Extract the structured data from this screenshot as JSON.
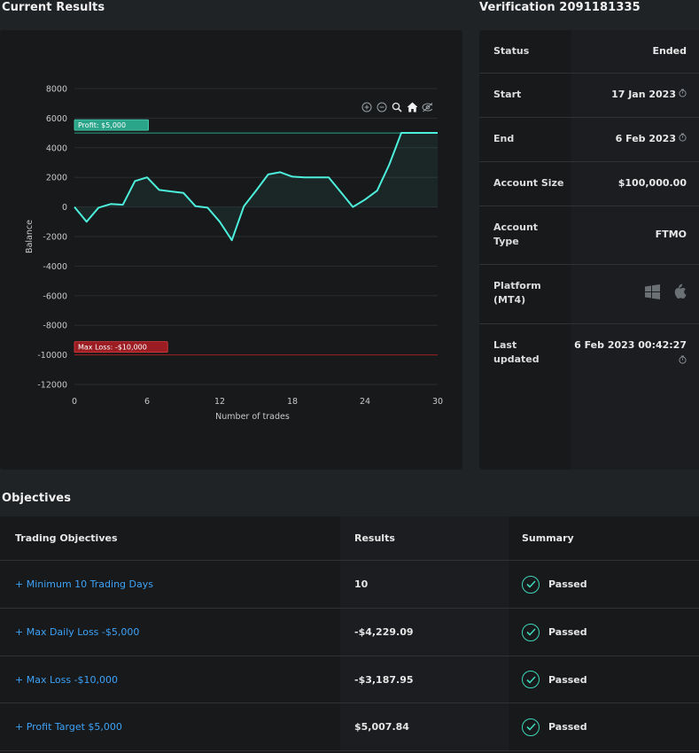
{
  "current_results": {
    "title": "Current Results"
  },
  "chart_data": {
    "type": "line",
    "xlabel": "Number of trades",
    "ylabel": "Balance",
    "xlim": [
      0,
      30
    ],
    "ylim": [
      -12000,
      8000
    ],
    "x_ticks": [
      "0",
      "6",
      "12",
      "18",
      "24",
      "30"
    ],
    "y_ticks": [
      "8000",
      "6000",
      "4000",
      "2000",
      "0",
      "-2000",
      "-4000",
      "-6000",
      "-8000",
      "-10000",
      "-12000"
    ],
    "x": [
      0,
      1,
      2,
      3,
      4,
      5,
      6,
      7,
      8,
      9,
      10,
      11,
      12,
      13,
      14,
      15,
      16,
      17,
      18,
      19,
      20,
      21,
      22,
      23,
      24,
      25,
      26,
      27,
      28,
      29,
      30
    ],
    "values": [
      0,
      -1000,
      -50,
      200,
      150,
      1750,
      2000,
      1150,
      1050,
      950,
      50,
      -50,
      -1000,
      -2250,
      50,
      1100,
      2200,
      2350,
      2050,
      2000,
      2000,
      2000,
      1000,
      0,
      500,
      1100,
      2850,
      5008,
      5008,
      5008,
      5008
    ],
    "lines": [
      {
        "label": "Profit: $5,000",
        "value": 5000,
        "color": "#2aa58a"
      },
      {
        "label": "Max Loss: -$10,000",
        "value": -10000,
        "color": "#9b1c22"
      }
    ],
    "line_color": "#4df0dc"
  },
  "verification": {
    "title": "Verification 2091181335",
    "rows": [
      {
        "label": "Status",
        "value": "Ended"
      },
      {
        "label": "Start",
        "value": "17 Jan 2023"
      },
      {
        "label": "End",
        "value": "6 Feb 2023"
      },
      {
        "label": "Account Size",
        "value": "$100,000.00"
      },
      {
        "label": "Account Type",
        "value": "FTMO"
      },
      {
        "label": "Platform (MT4)",
        "value": ""
      },
      {
        "label": "Last updated",
        "value": "6 Feb 2023 00:42:27"
      }
    ],
    "platform_icons": [
      "windows-icon",
      "apple-icon"
    ]
  },
  "objectives": {
    "title": "Objectives",
    "headers": [
      "Trading Objectives",
      "Results",
      "Summary"
    ],
    "rows": [
      {
        "objective": "+ Minimum 10 Trading Days",
        "result": "10",
        "summary": "Passed"
      },
      {
        "objective": "+ Max Daily Loss -$5,000",
        "result": "-$4,229.09",
        "summary": "Passed"
      },
      {
        "objective": "+ Max Loss -$10,000",
        "result": "-$3,187.95",
        "summary": "Passed"
      },
      {
        "objective": "+ Profit Target $5,000",
        "result": "$5,007.84",
        "summary": "Passed"
      }
    ]
  },
  "colors": {
    "accent": "#3ea2f7",
    "passed": "#3ed6b8"
  }
}
